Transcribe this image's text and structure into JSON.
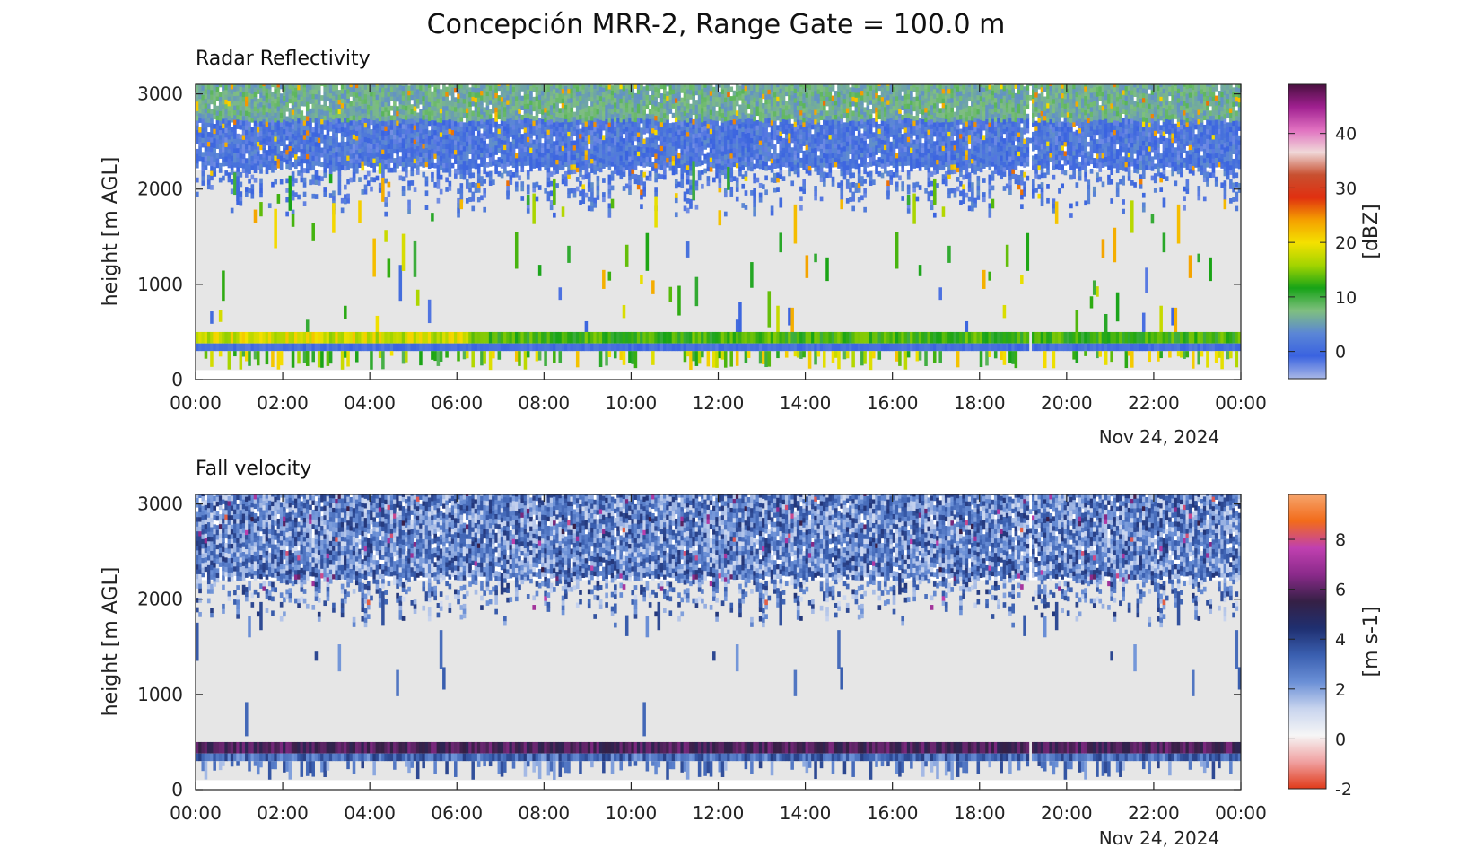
{
  "figure": {
    "title": "Concepción MRR-2, Range Gate = 100.0 m"
  },
  "chart_data": [
    {
      "type": "heatmap",
      "title": "Radar Reflectivity",
      "ylabel": "height [m AGL]",
      "ylim": [
        0,
        3100
      ],
      "yticks": [
        "0",
        "1000",
        "2000",
        "3000"
      ],
      "xlim": [
        "00:00",
        "24:00"
      ],
      "xticks": [
        "00:00",
        "02:00",
        "04:00",
        "06:00",
        "08:00",
        "10:00",
        "12:00",
        "14:00",
        "16:00",
        "18:00",
        "20:00",
        "22:00",
        "00:00"
      ],
      "date_label": "Nov 24, 2024",
      "colorbar": {
        "label": "[dBZ]",
        "range": [
          -5,
          49
        ],
        "ticks": [
          "0",
          "10",
          "20",
          "30",
          "40"
        ],
        "stops": [
          "#a9b8e6",
          "#3a63e0",
          "#5b86d6",
          "#7fbf7f",
          "#17a317",
          "#a2d400",
          "#f4e100",
          "#f5a000",
          "#e03010",
          "#c85030",
          "#f0d8d8",
          "#e070c0",
          "#a02090",
          "#4a1040"
        ]
      },
      "layers": {
        "background_range_m": [
          100,
          2200
        ],
        "background_color": "#e6e6e6",
        "upper_band_range_m": [
          2200,
          3100
        ],
        "upper_band_dbz": "-2 to 8 (blue/green)",
        "bright_band_range_m": [
          380,
          500
        ],
        "bright_band_dbz": "10 to 22 (green/yellow)",
        "low_layer_range_m": [
          300,
          380
        ],
        "low_layer_dbz": "-2 to 2 (blue)",
        "data_gap_hour": 19.1
      }
    },
    {
      "type": "heatmap",
      "title": "Fall velocity",
      "ylabel": "height [m AGL]",
      "ylim": [
        0,
        3100
      ],
      "yticks": [
        "0",
        "1000",
        "2000",
        "3000"
      ],
      "xlim": [
        "00:00",
        "24:00"
      ],
      "xticks": [
        "00:00",
        "02:00",
        "04:00",
        "06:00",
        "08:00",
        "10:00",
        "12:00",
        "14:00",
        "16:00",
        "18:00",
        "20:00",
        "22:00",
        "00:00"
      ],
      "date_label": "Nov 24, 2024",
      "colorbar": {
        "label": "[m s-1]",
        "range": [
          -2,
          9.8
        ],
        "ticks": [
          "-2",
          "0",
          "2",
          "4",
          "6",
          "8"
        ],
        "stops": [
          "#e03a1a",
          "#f0a0a0",
          "#f6f6f6",
          "#c8d4ee",
          "#6a8fd6",
          "#3a5fb0",
          "#1f2f70",
          "#352045",
          "#8a2a8a",
          "#c040b0",
          "#f26b1a",
          "#f6a46b"
        ]
      },
      "layers": {
        "background_range_m": [
          100,
          2200
        ],
        "background_color": "#e6e6e6",
        "upper_band_range_m": [
          2200,
          3100
        ],
        "upper_band_velocity": "1 to 4 m s-1 (blue)",
        "bright_band_range_m": [
          380,
          500
        ],
        "bright_band_velocity": "5 to 6.5 m s-1 (purple/magenta)",
        "low_layer_range_m": [
          300,
          380
        ],
        "low_layer_velocity": "2 to 4 m s-1 (dark blue)",
        "data_gap_hour": 19.1
      }
    }
  ]
}
